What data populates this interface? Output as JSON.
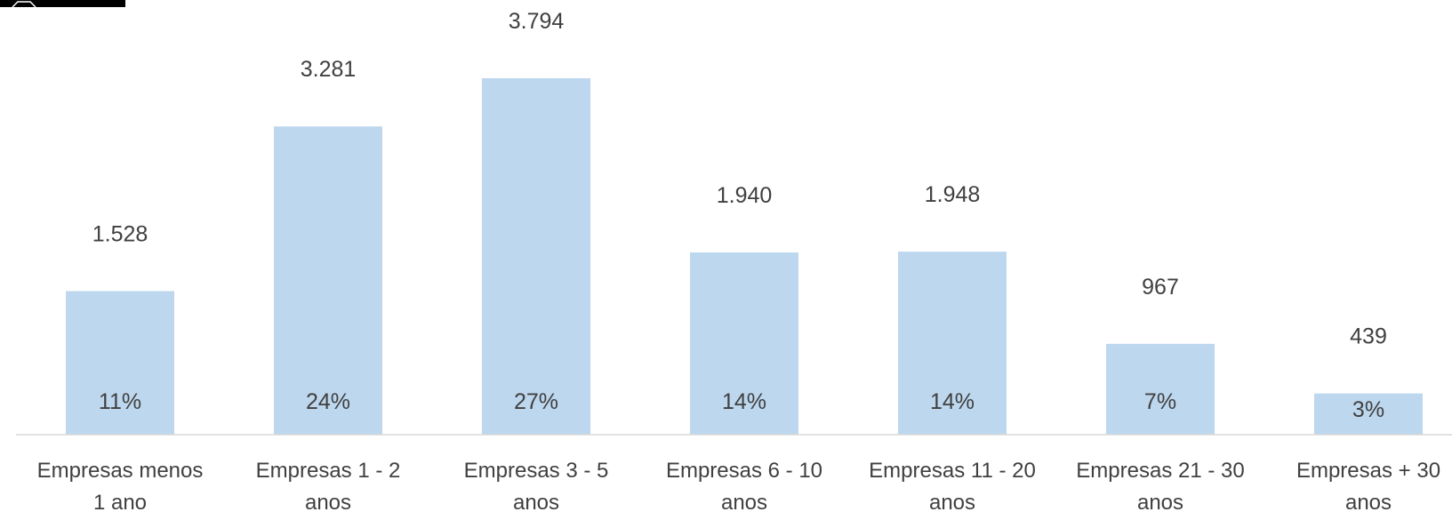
{
  "chart_data": {
    "type": "bar",
    "title": "",
    "xlabel": "",
    "ylabel": "",
    "categories": [
      [
        "Empresas menos",
        "1 ano"
      ],
      [
        "Empresas 1 - 2",
        "anos"
      ],
      [
        "Empresas 3 - 5",
        "anos"
      ],
      [
        "Empresas 6 - 10",
        "anos"
      ],
      [
        "Empresas 11 - 20",
        "anos"
      ],
      [
        "Empresas 21 - 30",
        "anos"
      ],
      [
        "Empresas + 30",
        "anos"
      ]
    ],
    "values": [
      1528,
      3281,
      3794,
      1940,
      1948,
      967,
      439
    ],
    "value_labels": [
      "1.528",
      "3.281",
      "3.794",
      "1.940",
      "1.948",
      "967",
      "439"
    ],
    "percent_labels": [
      "11%",
      "24%",
      "27%",
      "14%",
      "14%",
      "7%",
      "3%"
    ],
    "ylim": [
      0,
      3794
    ],
    "grid": false,
    "legend": "none",
    "colors": {
      "bar": "#bdd7ee",
      "axis": "#d9d9d9",
      "text": "#404040",
      "logo": "#000000"
    }
  }
}
